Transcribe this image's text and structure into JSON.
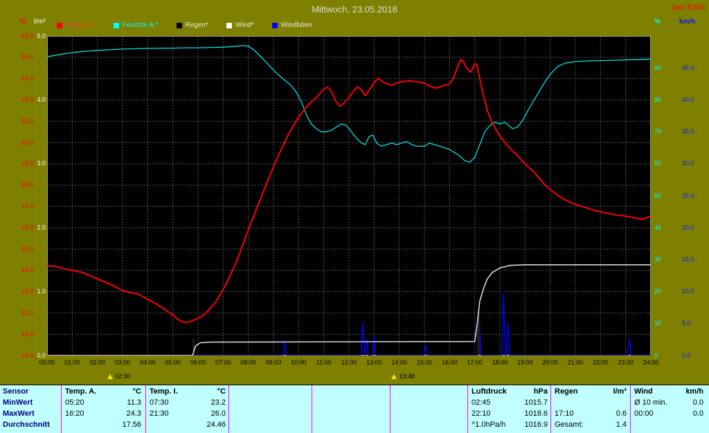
{
  "window": {
    "title": "Mittwoch, 23.05.2018",
    "station": "Jarz Erich"
  },
  "units": {
    "temp": "°C",
    "rain": "l/m²",
    "humidity": "%",
    "wind": "km/h"
  },
  "legend": [
    {
      "label": "Temp. A.*",
      "swatch": "#ff0000",
      "text": "#ff4040"
    },
    {
      "label": "Feuchte A.*",
      "swatch": "#00ffff",
      "text": "#00ffff"
    },
    {
      "label": "Regen*",
      "swatch": "#000000",
      "text": "#e8e8e8"
    },
    {
      "label": "Wind*",
      "swatch": "#ffffff",
      "text": "#e8e8e8"
    },
    {
      "label": "Windböen",
      "swatch": "#0000ff",
      "text": "#e8e8e8"
    }
  ],
  "axes": {
    "temp": {
      "unit": "°C",
      "color": "#ff0000",
      "labels": [
        "25.0",
        "24.0",
        "23.0",
        "22.0",
        "21.0",
        "20.0",
        "19.0",
        "18.0",
        "17.0",
        "16.0",
        "15.0",
        "14.0",
        "13.0",
        "12.0",
        "11.0",
        "10.0"
      ]
    },
    "rain": {
      "unit": "l/m²",
      "color": "#ffffff",
      "labels": [
        "5.0",
        "4.0",
        "3.0",
        "2.0",
        "1.0",
        "0.0"
      ]
    },
    "humidity": {
      "unit": "%",
      "color": "#00ffff",
      "labels": [
        "90",
        "80",
        "70",
        "60",
        "50",
        "40",
        "30",
        "20",
        "10",
        "0"
      ]
    },
    "wind": {
      "unit": "km/h",
      "color": "#1414ff",
      "labels": [
        "45.0",
        "40.0",
        "35.0",
        "30.0",
        "25.0",
        "20.0",
        "15.0",
        "10.0",
        "5.0",
        "0.0"
      ]
    },
    "time": {
      "labels": [
        "00:00",
        "01:00",
        "02:00",
        "03:00",
        "04:00",
        "05:00",
        "06:00",
        "07:00",
        "08:00",
        "09:00",
        "10:00",
        "11:00",
        "12:00",
        "13:00",
        "14:00",
        "15:00",
        "16:00",
        "17:00",
        "18:00",
        "19:00",
        "20:00",
        "21:00",
        "22:00",
        "23:00",
        "24:00"
      ]
    }
  },
  "markers": [
    {
      "time": "02:30",
      "hour": 2.5
    },
    {
      "time": "13:48",
      "hour": 13.8
    }
  ],
  "chart_data": {
    "type": "line",
    "title": "Mittwoch, 23.05.2018",
    "x_range_hours": [
      0,
      24
    ],
    "grid": true,
    "plot_background": "#000000",
    "axis_ranges": {
      "temp_c": [
        10,
        25
      ],
      "rain_lm2": [
        0,
        5
      ],
      "humidity_pct": [
        0,
        100
      ],
      "wind_kmh": [
        0,
        50
      ]
    },
    "series": [
      {
        "key": "wind",
        "name": "Wind*",
        "axis": "wind_kmh",
        "color": "#ffffff",
        "width": 1,
        "points": [
          [
            0,
            0
          ],
          [
            24,
            0
          ]
        ]
      },
      {
        "key": "windboeen",
        "name": "Windböen",
        "axis": "wind_kmh",
        "color": "#0000ff",
        "width": 1.4,
        "spikes": [
          [
            9.45,
            2.2
          ],
          [
            12.55,
            5.2
          ],
          [
            12.7,
            2.6
          ],
          [
            13.0,
            3.1
          ],
          [
            15.05,
            1.6
          ],
          [
            17.2,
            4.2
          ],
          [
            18.15,
            9.6
          ],
          [
            18.32,
            5.0
          ],
          [
            23.15,
            2.6
          ]
        ]
      },
      {
        "key": "regen_summe",
        "name": "Regen (Summe)",
        "axis": "rain_lm2",
        "color": "#d8d8d8",
        "width": 1.6,
        "points": [
          [
            0,
            0
          ],
          [
            5.75,
            0
          ],
          [
            5.8,
            0.02
          ],
          [
            5.9,
            0.15
          ],
          [
            6.1,
            0.2
          ],
          [
            6.5,
            0.21
          ],
          [
            17.0,
            0.22
          ],
          [
            17.1,
            0.5
          ],
          [
            17.2,
            0.85
          ],
          [
            17.35,
            1.05
          ],
          [
            17.5,
            1.2
          ],
          [
            17.7,
            1.3
          ],
          [
            18.0,
            1.37
          ],
          [
            18.4,
            1.41
          ],
          [
            19.0,
            1.42
          ],
          [
            24,
            1.42
          ]
        ]
      },
      {
        "key": "feuchte",
        "name": "Feuchte A.*",
        "axis": "humidity_pct",
        "color": "#00e5e5",
        "width": 1.3,
        "points": [
          [
            0,
            93.5
          ],
          [
            0.5,
            94.2
          ],
          [
            1,
            94.8
          ],
          [
            1.5,
            95.2
          ],
          [
            2,
            95.5
          ],
          [
            2.5,
            95.7
          ],
          [
            3,
            95.9
          ],
          [
            3.5,
            96.0
          ],
          [
            4,
            96.1
          ],
          [
            4.5,
            96.2
          ],
          [
            5,
            96.2
          ],
          [
            5.5,
            96.3
          ],
          [
            6,
            96.3
          ],
          [
            6.5,
            96.4
          ],
          [
            7,
            96.5
          ],
          [
            7.4,
            96.7
          ],
          [
            7.8,
            97.0
          ],
          [
            8.0,
            96.8
          ],
          [
            8.2,
            95.8
          ],
          [
            8.5,
            93.5
          ],
          [
            8.8,
            91.0
          ],
          [
            9.1,
            88.5
          ],
          [
            9.4,
            86.5
          ],
          [
            9.7,
            84.5
          ],
          [
            9.9,
            82.5
          ],
          [
            10.1,
            79.5
          ],
          [
            10.3,
            75.5
          ],
          [
            10.5,
            72.5
          ],
          [
            10.7,
            71.0
          ],
          [
            10.9,
            70.0
          ],
          [
            11.1,
            70.0
          ],
          [
            11.3,
            70.5
          ],
          [
            11.5,
            71.5
          ],
          [
            11.7,
            72.5
          ],
          [
            11.9,
            72.0
          ],
          [
            12.1,
            70.0
          ],
          [
            12.3,
            68.0
          ],
          [
            12.5,
            66.5
          ],
          [
            12.65,
            66.0
          ],
          [
            12.8,
            68.5
          ],
          [
            12.95,
            69.0
          ],
          [
            13.1,
            66.5
          ],
          [
            13.3,
            65.5
          ],
          [
            13.5,
            66.0
          ],
          [
            13.7,
            66.5
          ],
          [
            13.9,
            66.0
          ],
          [
            14.1,
            66.5
          ],
          [
            14.3,
            67.0
          ],
          [
            14.5,
            66.0
          ],
          [
            14.7,
            65.5
          ],
          [
            15,
            65.5
          ],
          [
            15.2,
            66.5
          ],
          [
            15.4,
            66.0
          ],
          [
            15.6,
            65.5
          ],
          [
            15.8,
            65.0
          ],
          [
            16,
            64.5
          ],
          [
            16.2,
            63.5
          ],
          [
            16.4,
            62.5
          ],
          [
            16.6,
            61.0
          ],
          [
            16.8,
            60.5
          ],
          [
            17,
            62.0
          ],
          [
            17.1,
            64.0
          ],
          [
            17.25,
            67.0
          ],
          [
            17.4,
            70.0
          ],
          [
            17.6,
            72.0
          ],
          [
            17.8,
            73.0
          ],
          [
            18,
            72.5
          ],
          [
            18.2,
            73.0
          ],
          [
            18.35,
            72.0
          ],
          [
            18.5,
            71.0
          ],
          [
            18.7,
            71.5
          ],
          [
            18.9,
            73.5
          ],
          [
            19.1,
            76.5
          ],
          [
            19.4,
            80.5
          ],
          [
            19.7,
            84.5
          ],
          [
            20,
            88.0
          ],
          [
            20.3,
            90.5
          ],
          [
            20.6,
            91.5
          ],
          [
            21,
            92.0
          ],
          [
            21.5,
            92.2
          ],
          [
            22,
            92.3
          ],
          [
            22.5,
            92.4
          ],
          [
            23,
            92.5
          ],
          [
            23.5,
            92.6
          ],
          [
            24,
            92.8
          ]
        ]
      },
      {
        "key": "temp",
        "name": "Temp. A.*",
        "axis": "temp_c",
        "color": "#ff0000",
        "width": 2,
        "points": [
          [
            0,
            14.2
          ],
          [
            0.3,
            14.2
          ],
          [
            0.6,
            14.1
          ],
          [
            1,
            14.0
          ],
          [
            1.4,
            13.9
          ],
          [
            1.8,
            13.7
          ],
          [
            2.2,
            13.5
          ],
          [
            2.6,
            13.3
          ],
          [
            3,
            13.05
          ],
          [
            3.3,
            12.95
          ],
          [
            3.6,
            12.9
          ],
          [
            3.9,
            12.7
          ],
          [
            4.3,
            12.45
          ],
          [
            4.7,
            12.15
          ],
          [
            5,
            11.9
          ],
          [
            5.2,
            11.7
          ],
          [
            5.35,
            11.6
          ],
          [
            5.5,
            11.55
          ],
          [
            5.7,
            11.6
          ],
          [
            5.9,
            11.7
          ],
          [
            6.1,
            11.8
          ],
          [
            6.4,
            12.1
          ],
          [
            6.7,
            12.5
          ],
          [
            7,
            13.1
          ],
          [
            7.3,
            13.8
          ],
          [
            7.6,
            14.6
          ],
          [
            8,
            15.9
          ],
          [
            8.4,
            17.1
          ],
          [
            8.8,
            18.3
          ],
          [
            9.2,
            19.4
          ],
          [
            9.6,
            20.4
          ],
          [
            10,
            21.2
          ],
          [
            10.4,
            21.8
          ],
          [
            10.7,
            22.1
          ],
          [
            11,
            22.5
          ],
          [
            11.15,
            22.6
          ],
          [
            11.3,
            22.4
          ],
          [
            11.5,
            21.9
          ],
          [
            11.65,
            21.7
          ],
          [
            11.8,
            21.85
          ],
          [
            12,
            22.1
          ],
          [
            12.2,
            22.45
          ],
          [
            12.35,
            22.6
          ],
          [
            12.5,
            22.45
          ],
          [
            12.65,
            22.2
          ],
          [
            12.8,
            22.45
          ],
          [
            13,
            22.8
          ],
          [
            13.15,
            23.0
          ],
          [
            13.3,
            22.9
          ],
          [
            13.5,
            22.75
          ],
          [
            13.7,
            22.7
          ],
          [
            13.9,
            22.8
          ],
          [
            14.1,
            22.85
          ],
          [
            14.4,
            22.9
          ],
          [
            14.7,
            22.85
          ],
          [
            15,
            22.8
          ],
          [
            15.2,
            22.65
          ],
          [
            15.45,
            22.55
          ],
          [
            15.7,
            22.65
          ],
          [
            16,
            22.75
          ],
          [
            16.15,
            23.0
          ],
          [
            16.3,
            23.5
          ],
          [
            16.45,
            23.9
          ],
          [
            16.55,
            23.8
          ],
          [
            16.7,
            23.45
          ],
          [
            16.85,
            23.3
          ],
          [
            17,
            23.7
          ],
          [
            17.08,
            23.65
          ],
          [
            17.2,
            23.0
          ],
          [
            17.35,
            22.2
          ],
          [
            17.5,
            21.5
          ],
          [
            17.7,
            20.9
          ],
          [
            18,
            20.3
          ],
          [
            18.3,
            19.85
          ],
          [
            18.6,
            19.5
          ],
          [
            19,
            19.0
          ],
          [
            19.4,
            18.55
          ],
          [
            19.8,
            18.0
          ],
          [
            20.2,
            17.6
          ],
          [
            20.6,
            17.3
          ],
          [
            21,
            17.1
          ],
          [
            21.4,
            16.95
          ],
          [
            21.8,
            16.8
          ],
          [
            22.2,
            16.7
          ],
          [
            22.6,
            16.6
          ],
          [
            23,
            16.55
          ],
          [
            23.4,
            16.45
          ],
          [
            23.7,
            16.4
          ],
          [
            24,
            16.55
          ]
        ]
      }
    ],
    "rain_bars": [
      {
        "t": 5.82,
        "v": 0.27,
        "w": 2,
        "color": "#2e2e2e"
      },
      {
        "t": 17.15,
        "v": 0.63,
        "w": 5,
        "color": "#1b1b2e"
      }
    ]
  },
  "table": {
    "row_labels": [
      "Sensor",
      "MinWert",
      "MaxWert",
      "Durchschnitt"
    ],
    "columns": [
      {
        "name": "Temp. A.",
        "unit": "°C",
        "min": [
          "05:20",
          "11.3"
        ],
        "max": [
          "16:20",
          "24.3"
        ],
        "avg": [
          "",
          "17.56"
        ]
      },
      {
        "name": "Temp. I.",
        "unit": "°C",
        "min": [
          "07:30",
          "23.2"
        ],
        "max": [
          "21:30",
          "26.0"
        ],
        "avg": [
          "",
          "24.46"
        ]
      },
      {
        "name": "",
        "unit": "",
        "min": [
          "",
          ""
        ],
        "max": [
          "",
          ""
        ],
        "avg": [
          "",
          ""
        ]
      },
      {
        "name": "",
        "unit": "",
        "min": [
          "",
          ""
        ],
        "max": [
          "",
          ""
        ],
        "avg": [
          "",
          ""
        ]
      },
      {
        "name": "Luftdruck",
        "unit": "hPa",
        "min": [
          "02:45",
          "1015.7"
        ],
        "max": [
          "22:10",
          "1018.6"
        ],
        "avg": [
          "^1.0hPa/h",
          "1016.9"
        ]
      },
      {
        "name": "Regen",
        "unit": "l/m²",
        "min": [
          "",
          ""
        ],
        "max": [
          "17:10",
          "0.6"
        ],
        "avg": [
          "Gesamt:",
          "1.4"
        ]
      },
      {
        "name": "Wind",
        "unit": "km/h",
        "min": [
          "Ø 10 min.",
          "0.0"
        ],
        "max": [
          "00:00",
          "0.0"
        ],
        "avg": [
          "",
          ""
        ]
      }
    ]
  }
}
